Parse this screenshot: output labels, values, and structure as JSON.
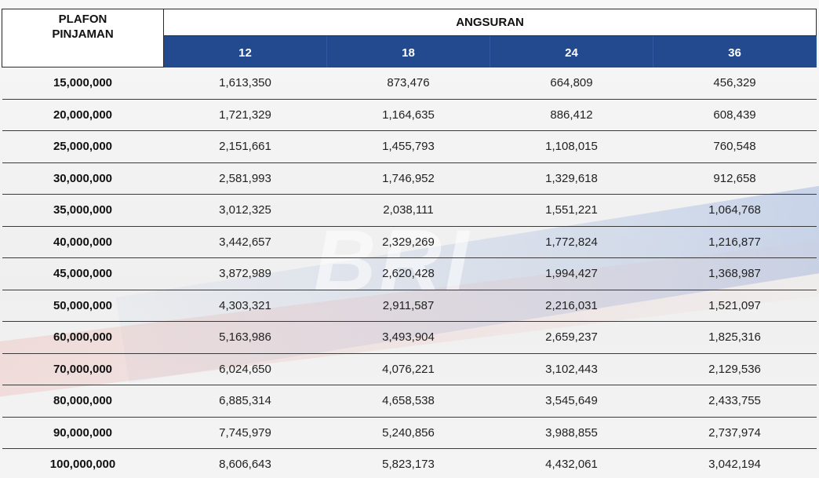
{
  "header": {
    "plafon_line1": "PLAFON",
    "plafon_line2": "PINJAMAN",
    "angsuran": "ANGSURAN",
    "tenors": [
      "12",
      "18",
      "24",
      "36"
    ]
  },
  "watermark_text": "BRI",
  "rows": [
    {
      "plafon": "15,000,000",
      "v": [
        "1,613,350",
        "873,476",
        "664,809",
        "456,329"
      ]
    },
    {
      "plafon": "20,000,000",
      "v": [
        "1,721,329",
        "1,164,635",
        "886,412",
        "608,439"
      ]
    },
    {
      "plafon": "25,000,000",
      "v": [
        "2,151,661",
        "1,455,793",
        "1,108,015",
        "760,548"
      ]
    },
    {
      "plafon": "30,000,000",
      "v": [
        "2,581,993",
        "1,746,952",
        "1,329,618",
        "912,658"
      ]
    },
    {
      "plafon": "35,000,000",
      "v": [
        "3,012,325",
        "2,038,111",
        "1,551,221",
        "1,064,768"
      ]
    },
    {
      "plafon": "40,000,000",
      "v": [
        "3,442,657",
        "2,329,269",
        "1,772,824",
        "1,216,877"
      ]
    },
    {
      "plafon": "45,000,000",
      "v": [
        "3,872,989",
        "2,620,428",
        "1,994,427",
        "1,368,987"
      ]
    },
    {
      "plafon": "50,000,000",
      "v": [
        "4,303,321",
        "2,911,587",
        "2,216,031",
        "1,521,097"
      ]
    },
    {
      "plafon": "60,000,000",
      "v": [
        "5,163,986",
        "3,493,904",
        "2,659,237",
        "1,825,316"
      ]
    },
    {
      "plafon": "70,000,000",
      "v": [
        "6,024,650",
        "4,076,221",
        "3,102,443",
        "2,129,536"
      ]
    },
    {
      "plafon": "80,000,000",
      "v": [
        "6,885,314",
        "4,658,538",
        "3,545,649",
        "2,433,755"
      ]
    },
    {
      "plafon": "90,000,000",
      "v": [
        "7,745,979",
        "5,240,856",
        "3,988,855",
        "2,737,974"
      ]
    },
    {
      "plafon": "100,000,000",
      "v": [
        "8,606,643",
        "5,823,173",
        "4,432,061",
        "3,042,194"
      ]
    }
  ],
  "colors": {
    "header_blue": "#234a8f",
    "row_line": "#3a3a3a"
  }
}
